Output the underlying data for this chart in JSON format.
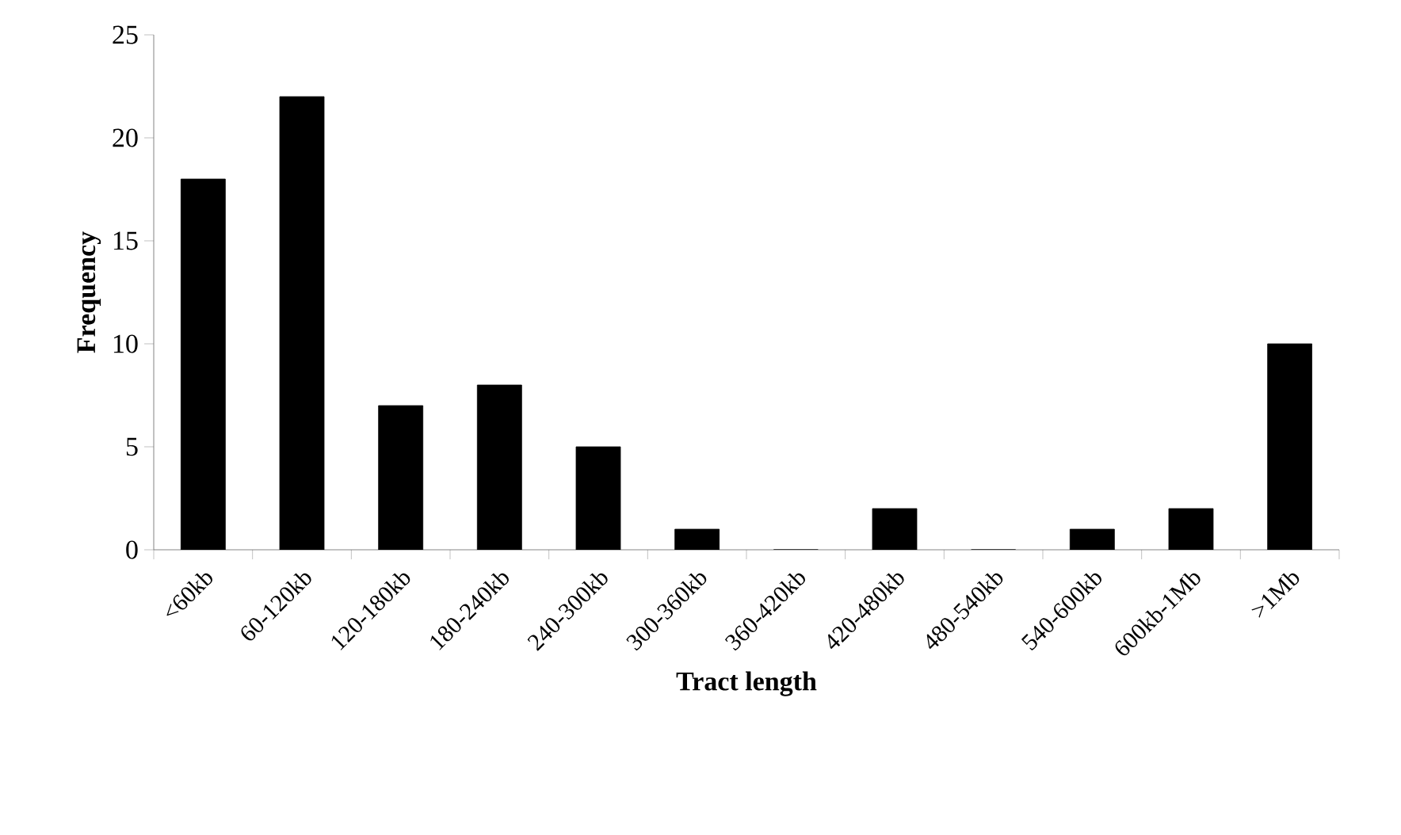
{
  "chart_data": {
    "type": "bar",
    "xlabel": "Tract length",
    "ylabel": "Frequency",
    "categories": [
      "<60kb",
      "60-120kb",
      "120-180kb",
      "180-240kb",
      "240-300kb",
      "300-360kb",
      "360-420kb",
      "420-480kb",
      "480-540kb",
      "540-600kb",
      "600kb-1Mb",
      ">1Mb"
    ],
    "values": [
      18,
      22,
      7,
      8,
      5,
      1,
      0,
      2,
      0,
      1,
      2,
      10
    ],
    "color": "#000000",
    "ylim": [
      0,
      25
    ],
    "yticks": [
      0,
      5,
      10,
      15,
      20,
      25
    ],
    "grid": false
  }
}
